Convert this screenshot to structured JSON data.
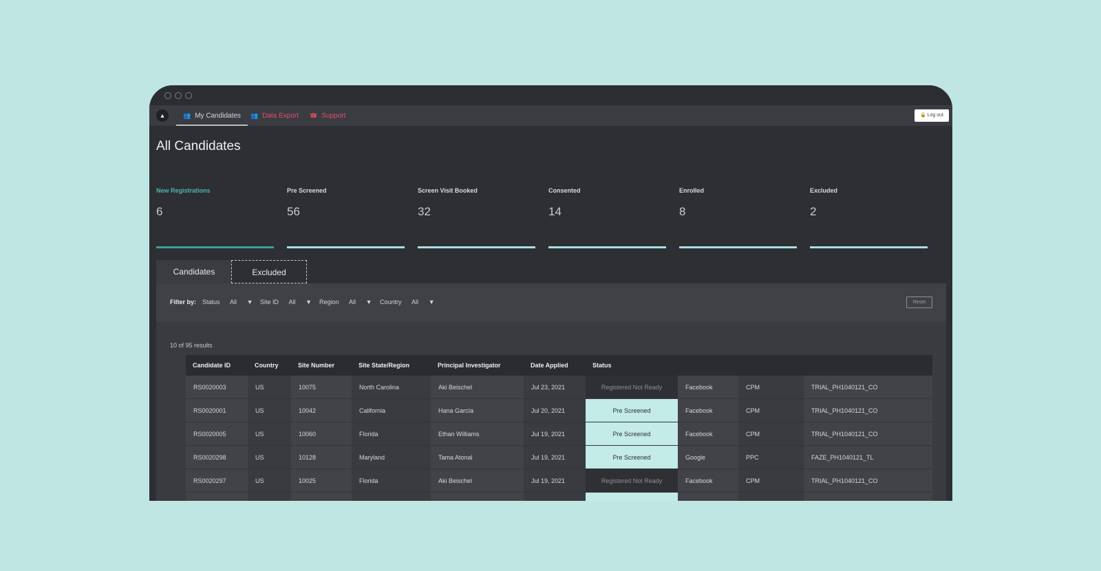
{
  "nav": {
    "items": [
      {
        "label": "My Candidates",
        "icon": "users-icon",
        "active": true
      },
      {
        "label": "Data Export",
        "icon": "users-icon",
        "active": false
      },
      {
        "label": "Support",
        "icon": "phone-icon",
        "active": false
      }
    ],
    "logout_label": "Log out",
    "logout_icon": "lock-icon"
  },
  "page": {
    "title": "All Candidates"
  },
  "stats": [
    {
      "label": "New Registrations",
      "value": "6"
    },
    {
      "label": "Pre Screened",
      "value": "56"
    },
    {
      "label": "Screen Visit Booked",
      "value": "32"
    },
    {
      "label": "Consented",
      "value": "14"
    },
    {
      "label": "Enrolled",
      "value": "8"
    },
    {
      "label": "Excluded",
      "value": "2"
    }
  ],
  "tabs": [
    {
      "label": "Candidates"
    },
    {
      "label": "Excluded"
    }
  ],
  "filters": {
    "label": "Filter by:",
    "status": {
      "label": "Status",
      "value": "All"
    },
    "site": {
      "label": "Site ID",
      "value": "All"
    },
    "region": {
      "label": "Region",
      "value": "All"
    },
    "country": {
      "label": "Country",
      "value": "All"
    },
    "reset_label": "Reset"
  },
  "results": {
    "summary": "10 of 95 results"
  },
  "table": {
    "headers": [
      "Candidate ID",
      "Country",
      "Site Number",
      "Site State/Region",
      "Principal Investigator",
      "Date Applied",
      "Status",
      "",
      "",
      ""
    ],
    "rows": [
      {
        "id": "RS0020003",
        "country": "US",
        "site": "10075",
        "region": "North Carolina",
        "pi": "Aki Beischel",
        "date": "Jul 23, 2021",
        "status": "Registered Not Ready",
        "source": "Facebook",
        "type": "CPM",
        "campaign": "TRIAL_PH1040121_CO"
      },
      {
        "id": "RS0020001",
        "country": "US",
        "site": "10042",
        "region": "California",
        "pi": "Hana García",
        "date": "Jul 20, 2021",
        "status": "Pre Screened",
        "source": "Facebook",
        "type": "CPM",
        "campaign": "TRIAL_PH1040121_CO"
      },
      {
        "id": "RS0020005",
        "country": "US",
        "site": "10060",
        "region": "Florida",
        "pi": "Ethan Williams",
        "date": "Jul 19, 2021",
        "status": "Pre Screened",
        "source": "Facebook",
        "type": "CPM",
        "campaign": "TRIAL_PH1040121_CO"
      },
      {
        "id": "RS0020298",
        "country": "US",
        "site": "10128",
        "region": "Maryland",
        "pi": "Tama Atonal",
        "date": "Jul 19, 2021",
        "status": "Pre Screened",
        "source": "Google",
        "type": "PPC",
        "campaign": "FAZE_PH1040121_TL"
      },
      {
        "id": "RS0020297",
        "country": "US",
        "site": "10025",
        "region": "Florida",
        "pi": "Aki Beischel",
        "date": "Jul 19, 2021",
        "status": "Registered Not Ready",
        "source": "Facebook",
        "type": "CPM",
        "campaign": "TRIAL_PH1040121_CO"
      }
    ]
  }
}
